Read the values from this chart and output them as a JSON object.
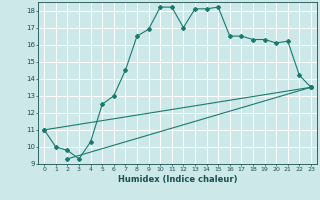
{
  "title": "",
  "xlabel": "Humidex (Indice chaleur)",
  "xlim": [
    -0.5,
    23.5
  ],
  "ylim": [
    9,
    18.5
  ],
  "xticks": [
    0,
    1,
    2,
    3,
    4,
    5,
    6,
    7,
    8,
    9,
    10,
    11,
    12,
    13,
    14,
    15,
    16,
    17,
    18,
    19,
    20,
    21,
    22,
    23
  ],
  "yticks": [
    9,
    10,
    11,
    12,
    13,
    14,
    15,
    16,
    17,
    18
  ],
  "bg_color": "#cce8e8",
  "line_color": "#1a7a6e",
  "grid_color": "#b0d8d8",
  "line1_x": [
    0,
    1,
    2,
    3,
    4,
    5,
    6,
    7,
    8,
    9,
    10,
    11,
    12,
    13,
    14,
    15,
    16,
    17,
    18,
    19,
    20,
    21,
    22,
    23
  ],
  "line1_y": [
    11,
    10,
    9.8,
    9.3,
    10.3,
    12.5,
    13.0,
    14.5,
    16.5,
    16.9,
    18.2,
    18.2,
    17.0,
    18.1,
    18.1,
    18.2,
    16.5,
    16.5,
    16.3,
    16.3,
    16.1,
    16.2,
    14.2,
    13.5
  ],
  "line2_x": [
    0,
    23
  ],
  "line2_y": [
    11,
    13.5
  ],
  "line3_x": [
    2,
    23
  ],
  "line3_y": [
    9.3,
    13.5
  ]
}
